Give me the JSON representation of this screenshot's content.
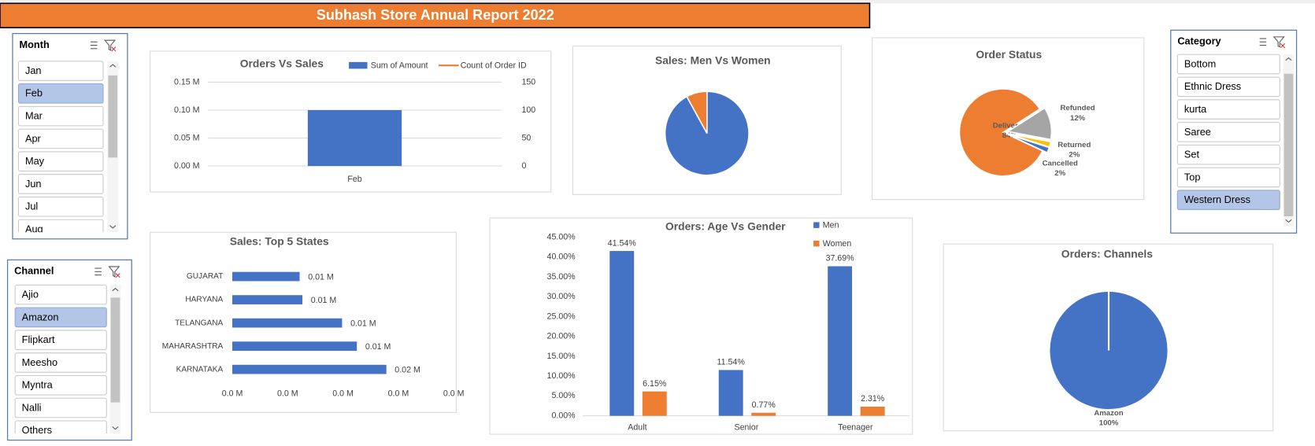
{
  "title": "Subhash Store Annual Report 2022",
  "slicers": [
    {
      "title": "Month",
      "items": [
        "Jan",
        "Feb",
        "Mar",
        "Apr",
        "May",
        "Jun",
        "Jul",
        "Aug"
      ],
      "selected": 1
    },
    {
      "title": "Channel",
      "items": [
        "Ajio",
        "Amazon",
        "Flipkart",
        "Meesho",
        "Myntra",
        "Nalli",
        "Others"
      ],
      "selected": 1
    },
    {
      "title": "Category",
      "items": [
        "Bottom",
        "Ethnic Dress",
        "kurta",
        "Saree",
        "Set",
        "Top",
        "Western Dress"
      ],
      "selected": 6
    }
  ],
  "chart_data": [
    {
      "type": "bar",
      "title": "Orders Vs Sales",
      "categories": [
        "Feb"
      ],
      "series": [
        {
          "name": "Sum of Amount",
          "color": "#4472C4",
          "values": [
            0.1
          ]
        },
        {
          "name": "Count of Order ID",
          "color": "#ED7D31",
          "values": [
            null
          ],
          "axis": "y2",
          "type": "line"
        }
      ],
      "ylim": [
        0,
        0.15
      ],
      "yticks": [
        {
          "value": 0,
          "label": "0.00 M"
        },
        {
          "value": 0.05,
          "label": "0.05 M"
        },
        {
          "value": 0.1,
          "label": "0.10 M"
        },
        {
          "value": 0.15,
          "label": "0.15 M"
        }
      ],
      "y2lim": [
        0,
        150
      ],
      "y2ticks": [
        0,
        50,
        100,
        150
      ],
      "grid": true,
      "legend": "top"
    },
    {
      "type": "pie",
      "title": "Sales: Men Vs Women",
      "values": [
        92,
        8
      ],
      "colors": [
        "#4472C4",
        "#ED7D31"
      ]
    },
    {
      "type": "pie",
      "title": "Order Status",
      "categories": [
        "Delivered",
        "Refunded",
        "Returned",
        "Cancelled"
      ],
      "values": [
        84,
        12,
        2,
        2
      ],
      "value_labels": [
        "84%",
        "12%",
        "2%",
        "2%"
      ],
      "colors": [
        "#ED7D31",
        "#A5A5A5",
        "#FFC000",
        "#4472C4"
      ]
    },
    {
      "type": "bar",
      "orientation": "horizontal",
      "title": "Sales: Top 5 States",
      "categories": [
        "GUJARAT",
        "HARYANA",
        "TELANGANA",
        "MAHARASHTRA",
        "KARNATAKA"
      ],
      "values": [
        0.0073,
        0.0076,
        0.0119,
        0.0135,
        0.0167
      ],
      "value_labels": [
        "0.01 M",
        "0.01 M",
        "0.01 M",
        "0.01 M",
        "0.02 M"
      ],
      "color": "#4472C4",
      "xlim": [
        0,
        0.024
      ],
      "xticks": [
        {
          "value": 0,
          "label": "0.0 M"
        },
        {
          "value": 0.006,
          "label": "0.0 M"
        },
        {
          "value": 0.012,
          "label": "0.0 M"
        },
        {
          "value": 0.018,
          "label": "0.0 M"
        },
        {
          "value": 0.024,
          "label": "0.0 M"
        }
      ]
    },
    {
      "type": "bar",
      "title": "Orders: Age Vs Gender",
      "categories": [
        "Adult",
        "Senior",
        "Teenager"
      ],
      "series": [
        {
          "name": "Men",
          "color": "#4472C4",
          "values": [
            41.54,
            11.54,
            37.69
          ],
          "value_labels": [
            "41.54%",
            "11.54%",
            "37.69%"
          ]
        },
        {
          "name": "Women",
          "color": "#ED7D31",
          "values": [
            6.15,
            0.77,
            2.31
          ],
          "value_labels": [
            "6.15%",
            "0.77%",
            "2.31%"
          ]
        }
      ],
      "ylim": [
        0,
        45
      ],
      "yticks": [
        {
          "value": 0,
          "label": "0.00%"
        },
        {
          "value": 5,
          "label": "5.00%"
        },
        {
          "value": 10,
          "label": "10.00%"
        },
        {
          "value": 15,
          "label": "15.00%"
        },
        {
          "value": 20,
          "label": "20.00%"
        },
        {
          "value": 25,
          "label": "25.00%"
        },
        {
          "value": 30,
          "label": "30.00%"
        },
        {
          "value": 35,
          "label": "35.00%"
        },
        {
          "value": 40,
          "label": "40.00%"
        },
        {
          "value": 45,
          "label": "45.00%"
        }
      ],
      "grid": false,
      "legend": "top-right"
    },
    {
      "type": "pie",
      "title": "Orders: Channels",
      "categories": [
        "Amazon"
      ],
      "values": [
        100
      ],
      "value_labels": [
        "100%"
      ],
      "colors": [
        "#4472C4"
      ]
    }
  ]
}
